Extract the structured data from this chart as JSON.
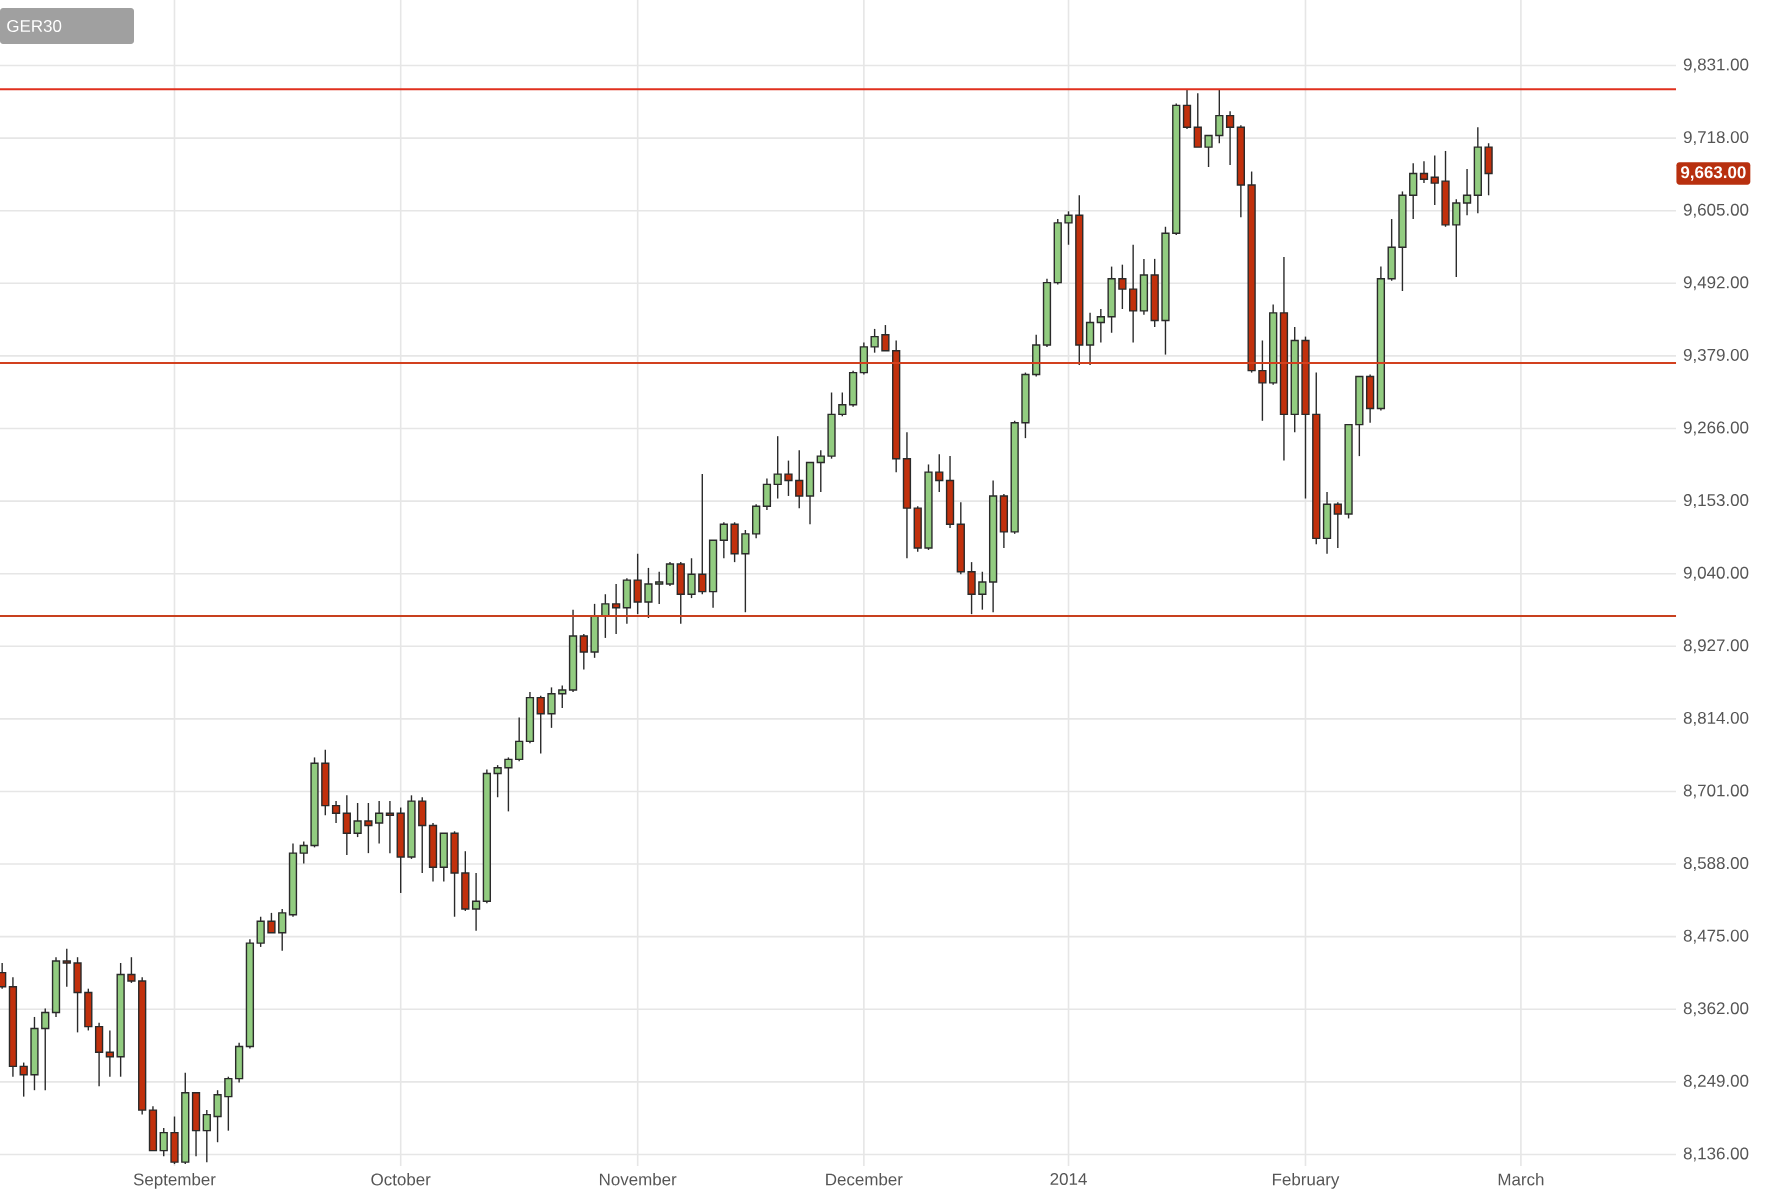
{
  "chart_data": {
    "type": "candlestick",
    "title": "GER30",
    "categories": [
      null,
      null,
      null,
      null,
      null,
      null,
      null,
      null,
      null,
      null,
      null,
      null,
      null,
      null,
      null,
      null,
      "September",
      null,
      null,
      null,
      null,
      null,
      null,
      null,
      null,
      null,
      null,
      null,
      null,
      null,
      null,
      null,
      null,
      null,
      null,
      null,
      null,
      "October",
      null,
      null,
      null,
      null,
      null,
      null,
      null,
      null,
      null,
      null,
      null,
      null,
      null,
      null,
      null,
      null,
      null,
      null,
      null,
      null,
      null,
      "November",
      null,
      null,
      null,
      null,
      null,
      null,
      null,
      null,
      null,
      null,
      null,
      null,
      null,
      null,
      null,
      null,
      null,
      null,
      null,
      null,
      "December",
      null,
      null,
      null,
      null,
      null,
      null,
      null,
      null,
      null,
      null,
      null,
      null,
      null,
      null,
      null,
      null,
      null,
      null,
      "2014",
      null,
      null,
      null,
      null,
      null,
      null,
      null,
      null,
      null,
      null,
      null,
      null,
      null,
      null,
      null,
      null,
      null,
      null,
      null,
      null,
      null,
      "February",
      null,
      null,
      null,
      null,
      null,
      null,
      null,
      null,
      null,
      null,
      null,
      null,
      null,
      null,
      null,
      null,
      null,
      null,
      null,
      "March",
      null,
      null,
      null,
      null,
      null,
      null,
      null,
      null,
      null,
      null,
      null,
      null,
      null
    ],
    "ohlc": [
      [
        8419,
        8434,
        8394,
        8397
      ],
      [
        8397,
        8412,
        8257,
        8273
      ],
      [
        8273,
        8279,
        8226,
        8260
      ],
      [
        8260,
        8350,
        8236,
        8332
      ],
      [
        8332,
        8363,
        8236,
        8357
      ],
      [
        8357,
        8443,
        8350,
        8437
      ],
      [
        8437,
        8456,
        8397,
        8434
      ],
      [
        8434,
        8443,
        8326,
        8388
      ],
      [
        8388,
        8394,
        8329,
        8335
      ],
      [
        8335,
        8341,
        8242,
        8295
      ],
      [
        8295,
        8329,
        8257,
        8288
      ],
      [
        8288,
        8434,
        8257,
        8416
      ],
      [
        8416,
        8443,
        8403,
        8406
      ],
      [
        8406,
        8412,
        8198,
        8205
      ],
      [
        8205,
        8211,
        8142,
        8142
      ],
      [
        8142,
        8177,
        8133,
        8170
      ],
      [
        8170,
        8195,
        8121,
        8124
      ],
      [
        8124,
        8263,
        8121,
        8232
      ],
      [
        8232,
        8232,
        8133,
        8173
      ],
      [
        8173,
        8205,
        8124,
        8198
      ],
      [
        8195,
        8236,
        8155,
        8229
      ],
      [
        8226,
        8257,
        8173,
        8254
      ],
      [
        8254,
        8310,
        8248,
        8304
      ],
      [
        8304,
        8471,
        8301,
        8465
      ],
      [
        8465,
        8506,
        8459,
        8499
      ],
      [
        8499,
        8512,
        8481,
        8481
      ],
      [
        8481,
        8518,
        8453,
        8512
      ],
      [
        8509,
        8620,
        8506,
        8605
      ],
      [
        8605,
        8623,
        8589,
        8617
      ],
      [
        8617,
        8754,
        8614,
        8745
      ],
      [
        8745,
        8766,
        8664,
        8679
      ],
      [
        8679,
        8686,
        8652,
        8667
      ],
      [
        8667,
        8695,
        8602,
        8636
      ],
      [
        8636,
        8683,
        8630,
        8655
      ],
      [
        8655,
        8683,
        8605,
        8648
      ],
      [
        8652,
        8686,
        8620,
        8667
      ],
      [
        8667,
        8686,
        8605,
        8664
      ],
      [
        8667,
        8676,
        8543,
        8599
      ],
      [
        8599,
        8695,
        8596,
        8686
      ],
      [
        8686,
        8692,
        8574,
        8648
      ],
      [
        8648,
        8652,
        8561,
        8583
      ],
      [
        8583,
        8636,
        8561,
        8636
      ],
      [
        8636,
        8639,
        8506,
        8574
      ],
      [
        8574,
        8608,
        8515,
        8518
      ],
      [
        8518,
        8574,
        8484,
        8530
      ],
      [
        8530,
        8735,
        8527,
        8729
      ],
      [
        8729,
        8742,
        8692,
        8738
      ],
      [
        8738,
        8754,
        8670,
        8751
      ],
      [
        8751,
        8816,
        8748,
        8779
      ],
      [
        8779,
        8856,
        8776,
        8847
      ],
      [
        8847,
        8850,
        8760,
        8822
      ],
      [
        8822,
        8863,
        8800,
        8853
      ],
      [
        8853,
        8866,
        8831,
        8859
      ],
      [
        8859,
        8984,
        8856,
        8943
      ],
      [
        8943,
        8946,
        8891,
        8918
      ],
      [
        8918,
        8993,
        8909,
        8974
      ],
      [
        8974,
        9008,
        8940,
        8993
      ],
      [
        8993,
        9024,
        8946,
        8987
      ],
      [
        8987,
        9033,
        8962,
        9030
      ],
      [
        9030,
        9071,
        8977,
        8996
      ],
      [
        8996,
        9049,
        8971,
        9024
      ],
      [
        9024,
        9043,
        8993,
        9027
      ],
      [
        9024,
        9058,
        9021,
        9055
      ],
      [
        9055,
        9058,
        8962,
        9008
      ],
      [
        9008,
        9064,
        9002,
        9039
      ],
      [
        9039,
        9195,
        9008,
        9012
      ],
      [
        9012,
        9092,
        8987,
        9092
      ],
      [
        9092,
        9120,
        9064,
        9117
      ],
      [
        9117,
        9120,
        9058,
        9071
      ],
      [
        9071,
        9108,
        8980,
        9102
      ],
      [
        9102,
        9148,
        9095,
        9145
      ],
      [
        9145,
        9188,
        9139,
        9179
      ],
      [
        9179,
        9254,
        9157,
        9195
      ],
      [
        9195,
        9216,
        9161,
        9185
      ],
      [
        9185,
        9232,
        9142,
        9161
      ],
      [
        9161,
        9213,
        9117,
        9213
      ],
      [
        9213,
        9232,
        9167,
        9223
      ],
      [
        9223,
        9322,
        9219,
        9288
      ],
      [
        9288,
        9322,
        9285,
        9303
      ],
      [
        9303,
        9356,
        9300,
        9353
      ],
      [
        9353,
        9400,
        9350,
        9393
      ],
      [
        9393,
        9421,
        9384,
        9409
      ],
      [
        9412,
        9427,
        9387,
        9387
      ],
      [
        9387,
        9403,
        9198,
        9219
      ],
      [
        9219,
        9260,
        9064,
        9142
      ],
      [
        9142,
        9145,
        9074,
        9080
      ],
      [
        9080,
        9210,
        9077,
        9198
      ],
      [
        9198,
        9226,
        9167,
        9185
      ],
      [
        9185,
        9223,
        9111,
        9117
      ],
      [
        9117,
        9151,
        9039,
        9043
      ],
      [
        9043,
        9058,
        8977,
        9008
      ],
      [
        9008,
        9043,
        8984,
        9027
      ],
      [
        9027,
        9185,
        8980,
        9161
      ],
      [
        9161,
        9164,
        9080,
        9105
      ],
      [
        9105,
        9278,
        9102,
        9275
      ],
      [
        9275,
        9353,
        9251,
        9350
      ],
      [
        9350,
        9412,
        9347,
        9396
      ],
      [
        9396,
        9499,
        9393,
        9493
      ],
      [
        9493,
        9592,
        9490,
        9586
      ],
      [
        9586,
        9604,
        9552,
        9598
      ],
      [
        9598,
        9629,
        9365,
        9396
      ],
      [
        9396,
        9446,
        9365,
        9431
      ],
      [
        9431,
        9452,
        9400,
        9440
      ],
      [
        9440,
        9518,
        9415,
        9499
      ],
      [
        9499,
        9521,
        9452,
        9483
      ],
      [
        9483,
        9552,
        9400,
        9449
      ],
      [
        9449,
        9530,
        9443,
        9505
      ],
      [
        9505,
        9530,
        9424,
        9434
      ],
      [
        9434,
        9580,
        9381,
        9570
      ],
      [
        9570,
        9772,
        9567,
        9769
      ],
      [
        9769,
        9794,
        9732,
        9735
      ],
      [
        9735,
        9788,
        9704,
        9704
      ],
      [
        9704,
        9722,
        9673,
        9722
      ],
      [
        9722,
        9794,
        9710,
        9753
      ],
      [
        9753,
        9760,
        9676,
        9735
      ],
      [
        9735,
        9738,
        9595,
        9645
      ],
      [
        9645,
        9666,
        9353,
        9356
      ],
      [
        9356,
        9403,
        9278,
        9337
      ],
      [
        9337,
        9459,
        9334,
        9446
      ],
      [
        9446,
        9533,
        9216,
        9288
      ],
      [
        9288,
        9424,
        9260,
        9403
      ],
      [
        9403,
        9409,
        9157,
        9288
      ],
      [
        9288,
        9353,
        9086,
        9095
      ],
      [
        9095,
        9167,
        9071,
        9148
      ],
      [
        9148,
        9151,
        9080,
        9133
      ],
      [
        9133,
        9272,
        9126,
        9272
      ],
      [
        9272,
        9347,
        9223,
        9347
      ],
      [
        9347,
        9350,
        9275,
        9297
      ],
      [
        9297,
        9518,
        9294,
        9499
      ],
      [
        9499,
        9592,
        9496,
        9548
      ],
      [
        9548,
        9635,
        9480,
        9629
      ],
      [
        9629,
        9679,
        9592,
        9663
      ],
      [
        9663,
        9682,
        9648,
        9654
      ],
      [
        9657,
        9691,
        9614,
        9648
      ],
      [
        9651,
        9698,
        9580,
        9583
      ],
      [
        9583,
        9623,
        9502,
        9617
      ],
      [
        9617,
        9670,
        9598,
        9629
      ],
      [
        9629,
        9735,
        9601,
        9704
      ],
      [
        9704,
        9710,
        9629,
        9663
      ],
      null,
      null,
      null,
      null,
      null,
      null,
      null,
      null,
      null,
      null,
      null,
      null,
      null,
      null,
      null,
      null
    ],
    "ylim": [
      8118,
      9933
    ],
    "yticks": [
      {
        "value": 8136,
        "label": "8,136.00"
      },
      {
        "value": 8249,
        "label": "8,249.00"
      },
      {
        "value": 8362,
        "label": "8,362.00"
      },
      {
        "value": 8475,
        "label": "8,475.00"
      },
      {
        "value": 8588,
        "label": "8,588.00"
      },
      {
        "value": 8701,
        "label": "8,701.00"
      },
      {
        "value": 8814,
        "label": "8,814.00"
      },
      {
        "value": 8927,
        "label": "8,927.00"
      },
      {
        "value": 9040,
        "label": "9,040.00"
      },
      {
        "value": 9153,
        "label": "9,153.00"
      },
      {
        "value": 9266,
        "label": "9,266.00"
      },
      {
        "value": 9379,
        "label": "9,379.00"
      },
      {
        "value": 9492,
        "label": "9,492.00"
      },
      {
        "value": 9605,
        "label": "9,605.00"
      },
      {
        "value": 9718,
        "label": "9,718.00"
      },
      {
        "value": 9831,
        "label": "9,831.00"
      }
    ],
    "ref_lines": [
      {
        "axis": "y",
        "value": 9794,
        "color": "#e0301e"
      },
      {
        "axis": "y",
        "value": 9368,
        "color": "#d2401e"
      },
      {
        "axis": "y",
        "value": 8974,
        "color": "#c8401e"
      }
    ],
    "annotations": [
      {
        "text": "9,663.00",
        "y": 9663
      }
    ],
    "grid": true
  }
}
